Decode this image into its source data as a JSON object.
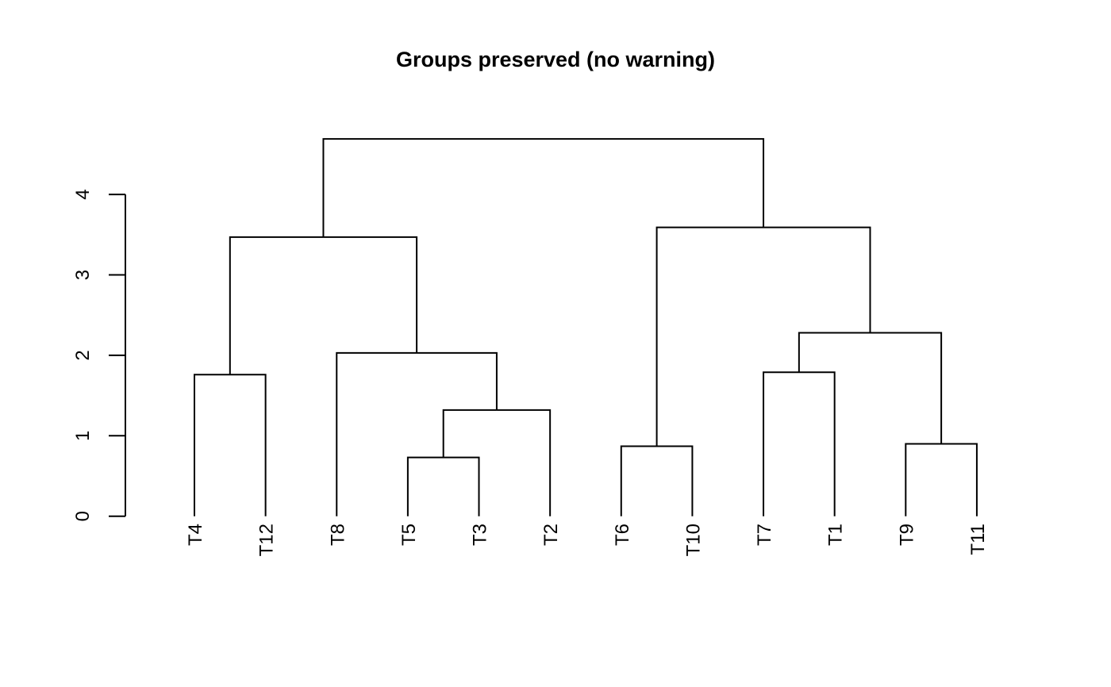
{
  "chart_data": {
    "type": "dendrogram",
    "title": "Groups preserved (no warning)",
    "leaves": [
      "T4",
      "T12",
      "T8",
      "T5",
      "T3",
      "T2",
      "T6",
      "T10",
      "T7",
      "T1",
      "T9",
      "T11"
    ],
    "tree": {
      "height": 4.69,
      "children": [
        {
          "height": 3.47,
          "children": [
            {
              "height": 1.76,
              "children": [
                "T4",
                "T12"
              ]
            },
            {
              "height": 2.03,
              "children": [
                "T8",
                {
                  "height": 1.32,
                  "children": [
                    {
                      "height": 0.73,
                      "children": [
                        "T5",
                        "T3"
                      ]
                    },
                    "T2"
                  ]
                }
              ]
            }
          ]
        },
        {
          "height": 3.59,
          "children": [
            {
              "height": 0.87,
              "children": [
                "T6",
                "T10"
              ]
            },
            {
              "height": 2.28,
              "children": [
                {
                  "height": 1.79,
                  "children": [
                    "T7",
                    "T1"
                  ]
                },
                {
                  "height": 0.9,
                  "children": [
                    "T9",
                    "T11"
                  ]
                }
              ]
            }
          ]
        }
      ]
    },
    "yticks": [
      0,
      1,
      2,
      3,
      4
    ],
    "ylim": [
      0,
      4.8
    ],
    "ylabel": "",
    "xlabel": "",
    "grid": "off",
    "legend": "none",
    "line_color": "#000000",
    "text_color": "#000000",
    "background": "#ffffff"
  }
}
